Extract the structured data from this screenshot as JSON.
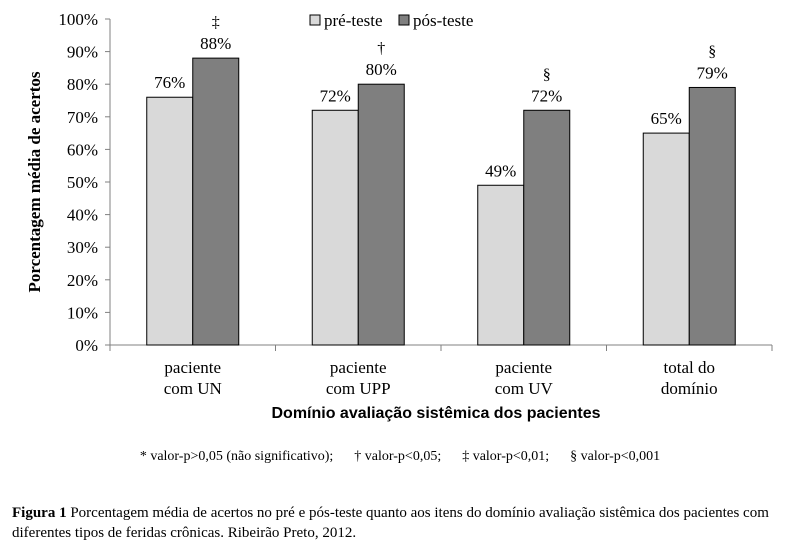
{
  "chart_data": {
    "type": "bar",
    "categories": [
      [
        "paciente",
        "com UN"
      ],
      [
        "paciente",
        "com UPP"
      ],
      [
        "paciente",
        "com UV"
      ],
      [
        "total do",
        "domínio"
      ]
    ],
    "series": [
      {
        "name": "pré-teste",
        "color": "#d9d9d9",
        "values": [
          76,
          72,
          49,
          65
        ]
      },
      {
        "name": "pós-teste",
        "color": "#7f7f7f",
        "values": [
          88,
          80,
          72,
          79
        ]
      }
    ],
    "value_labels": [
      [
        "76%",
        "88%"
      ],
      [
        "72%",
        "80%"
      ],
      [
        "49%",
        "72%"
      ],
      [
        "65%",
        "79%"
      ]
    ],
    "significance_markers": [
      "‡",
      "†",
      "§",
      "§"
    ],
    "ylim": [
      0,
      100
    ],
    "yticks": [
      0,
      10,
      20,
      30,
      40,
      50,
      60,
      70,
      80,
      90,
      100
    ],
    "ytick_suffix": "%",
    "ylabel": "Porcentagem média de acertos",
    "xlabel": "Domínio avaliação sistêmica dos pacientes",
    "legend_position": "top-right",
    "grid": false
  },
  "footnote": "* valor-p>0,05 (não significativo);      † valor-p<0,05;      ‡ valor-p<0,01;      § valor-p<0,001",
  "caption": {
    "label": "Figura 1",
    "text": " Porcentagem média de acertos no pré e pós-teste quanto aos itens do domínio avaliação sistêmica dos pacientes com diferentes tipos de feridas crônicas. Ribeirão Preto, 2012."
  }
}
